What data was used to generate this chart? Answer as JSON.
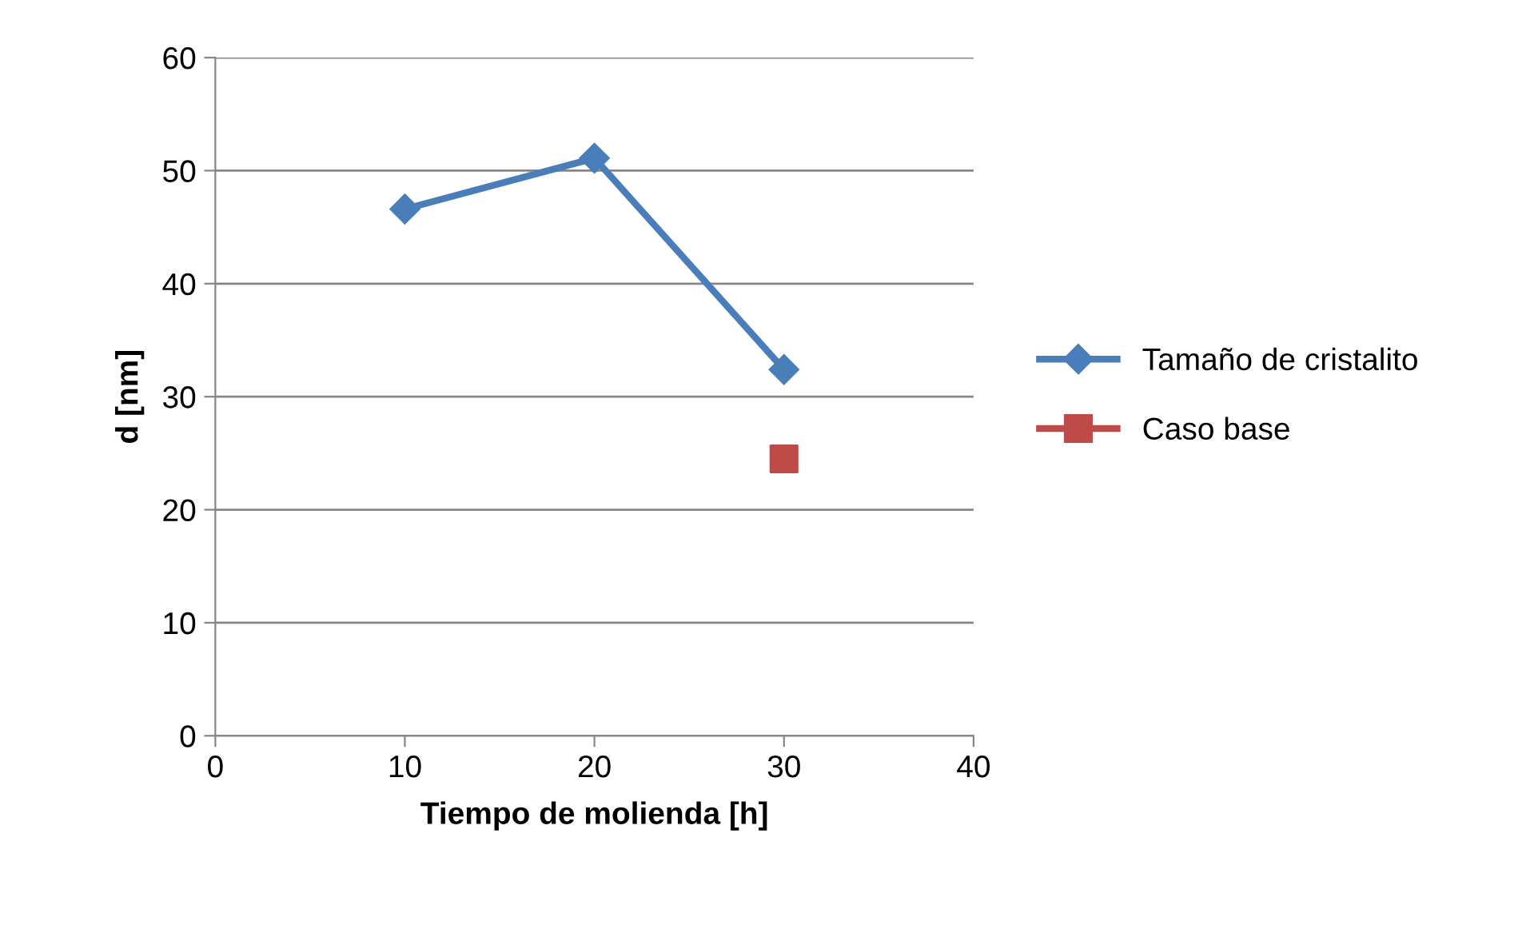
{
  "chart_data": {
    "type": "line",
    "xlabel": "Tiempo de molienda [h]",
    "ylabel": "d [nm]",
    "series": [
      {
        "name": "Tamaño de cristalito",
        "color": "#4a7ebb",
        "x": [
          10,
          20,
          30
        ],
        "values": [
          46.6,
          51.1,
          32.4
        ],
        "marker": "diamond",
        "line_style": "solid"
      },
      {
        "name": "Caso base",
        "color": "#be4b48",
        "type": "scatter",
        "x": [
          30
        ],
        "values": [
          24.5
        ],
        "marker": "square"
      }
    ],
    "xlim": [
      0,
      40
    ],
    "xticks": [
      0,
      10,
      20,
      30,
      40
    ],
    "ylim": [
      0,
      60
    ],
    "yticks": [
      0,
      10,
      20,
      30,
      40,
      50,
      60
    ],
    "grid": "y",
    "legend": "right"
  }
}
